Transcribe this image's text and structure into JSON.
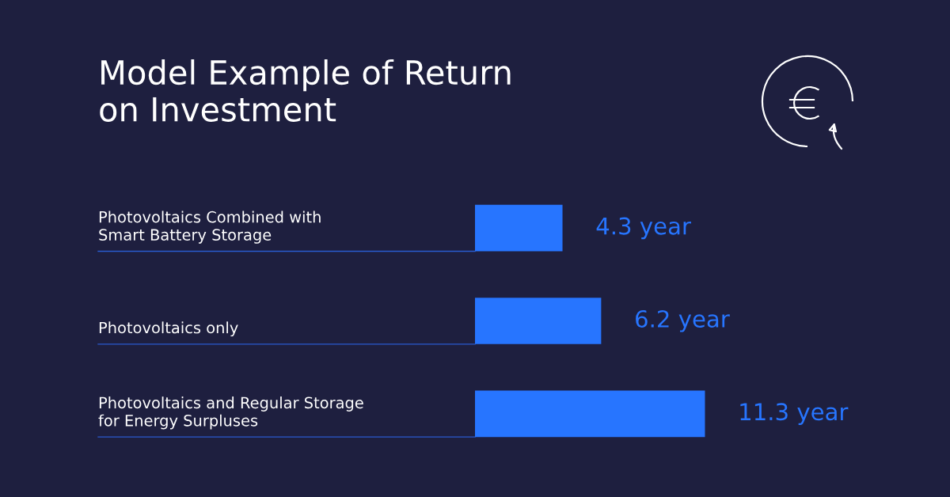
{
  "chart_data": {
    "type": "bar",
    "orientation": "horizontal",
    "title": "Model Example of Return\non Investment",
    "categories": [
      "Photovoltaics Combined with\nSmart Battery Storage",
      "Photovoltaics only",
      "Photovoltaics and Regular Storage\nfor Energy Surpluses"
    ],
    "values": [
      4.3,
      6.2,
      11.3
    ],
    "value_labels": [
      "4.3 year",
      "6.2 year",
      "11.3 year"
    ],
    "color": "#2775ff"
  }
}
